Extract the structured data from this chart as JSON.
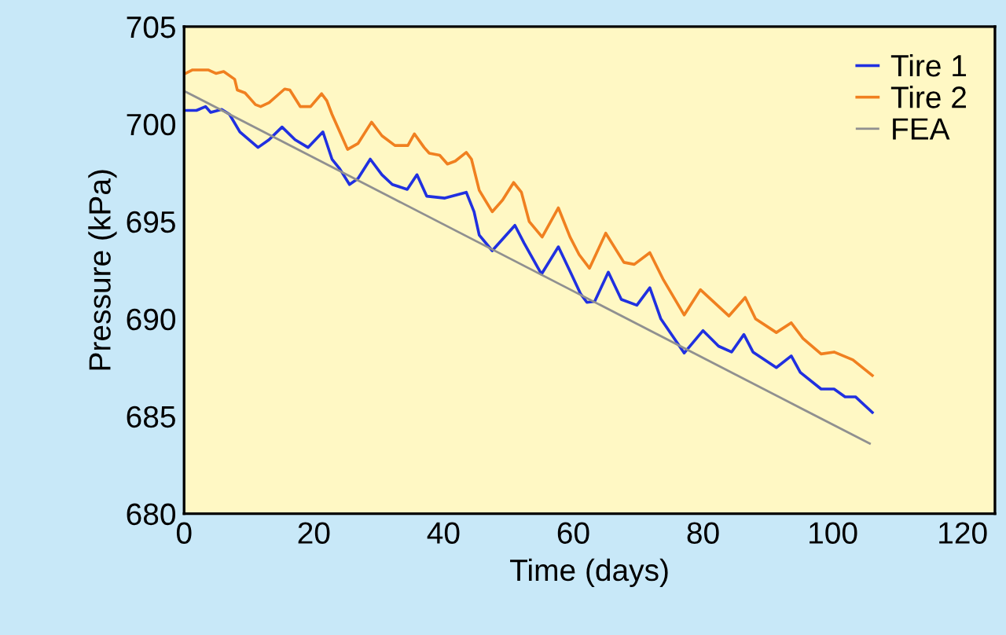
{
  "chart_data": {
    "type": "line",
    "xlabel": "Time (days)",
    "ylabel": "Pressure (kPa)",
    "xlim": [
      0,
      125
    ],
    "xticks": [
      0,
      20,
      40,
      60,
      80,
      100,
      120
    ],
    "ylim": [
      680,
      705
    ],
    "yticks": [
      680,
      685,
      690,
      695,
      700,
      705
    ],
    "grid": false,
    "legend": "top right",
    "marker": "none",
    "line_style": "solid",
    "series": [
      {
        "name": "Tire 1",
        "color": "#2030e0",
        "x": [
          0,
          1.9,
          3.3,
          4.1,
          5.8,
          7,
          8.6,
          11.4,
          13.1,
          15.1,
          17.1,
          19.1,
          21.4,
          22.8,
          24,
          25.5,
          26.8,
          28.7,
          30.5,
          32.1,
          34.4,
          35.9,
          37.4,
          40.2,
          43.5,
          44.7,
          45.5,
          47.5,
          51,
          52.4,
          55.1,
          57.7,
          59.7,
          61.1,
          62.1,
          63.3,
          65.4,
          67.4,
          69.8,
          71.8,
          73.5,
          77.1,
          80,
          82.4,
          84.4,
          86.3,
          87.7,
          91.3,
          93.6,
          95,
          98.2,
          100.2,
          101.9,
          103.5,
          106.1
        ],
        "values": [
          700.7,
          700.7,
          700.9,
          700.6,
          700.75,
          700.5,
          699.6,
          698.8,
          699.2,
          699.85,
          699.2,
          698.8,
          699.6,
          698.2,
          697.7,
          696.9,
          697.2,
          698.2,
          697.4,
          696.9,
          696.65,
          697.4,
          696.3,
          696.2,
          696.5,
          695.5,
          694.3,
          693.5,
          694.8,
          693.9,
          692.3,
          693.7,
          692.3,
          691.3,
          690.85,
          690.9,
          692.4,
          691,
          690.7,
          691.6,
          690,
          688.25,
          689.4,
          688.6,
          688.3,
          689.2,
          688.3,
          687.5,
          688.1,
          687.25,
          686.4,
          686.4,
          686,
          686,
          685.2
        ]
      },
      {
        "name": "Tire 2",
        "color": "#f08020",
        "x": [
          0,
          1.3,
          3.7,
          4.9,
          6.1,
          7.8,
          8.2,
          9.4,
          10.2,
          11,
          11.8,
          13.1,
          15.5,
          16.3,
          17.9,
          19.5,
          21.2,
          22,
          22.8,
          24,
          25.2,
          26.8,
          28.9,
          30.5,
          32.5,
          34.5,
          35.5,
          37,
          37.8,
          39.4,
          40.6,
          41.8,
          43.5,
          44.3,
          45.5,
          47.5,
          49.1,
          50.8,
          52,
          53.2,
          55.2,
          57.7,
          59.5,
          60.9,
          62.5,
          65,
          67.8,
          69.4,
          71.8,
          73.9,
          77.1,
          79.6,
          84,
          86.5,
          88.1,
          91.3,
          93.6,
          95.4,
          98.2,
          100.2,
          103.1,
          106.1
        ],
        "values": [
          702.56,
          702.78,
          702.78,
          702.6,
          702.7,
          702.3,
          701.75,
          701.6,
          701.3,
          701,
          700.9,
          701.1,
          701.8,
          701.75,
          700.9,
          700.9,
          701.56,
          701.2,
          700.5,
          699.6,
          698.7,
          699,
          700.1,
          699.4,
          698.9,
          698.9,
          699.5,
          698.8,
          698.5,
          698.4,
          697.95,
          698.1,
          698.55,
          698.2,
          696.6,
          695.5,
          696.1,
          697,
          696.5,
          695,
          694.2,
          695.7,
          694.2,
          693.3,
          692.6,
          694.4,
          692.9,
          692.8,
          693.4,
          692,
          690.2,
          691.5,
          690.15,
          691.1,
          690,
          689.3,
          689.8,
          689,
          688.2,
          688.3,
          687.9,
          687.1
        ]
      },
      {
        "name": "FEA",
        "color": "#909090",
        "x": [
          0,
          105.7
        ],
        "values": [
          701.7,
          683.6
        ]
      }
    ]
  }
}
